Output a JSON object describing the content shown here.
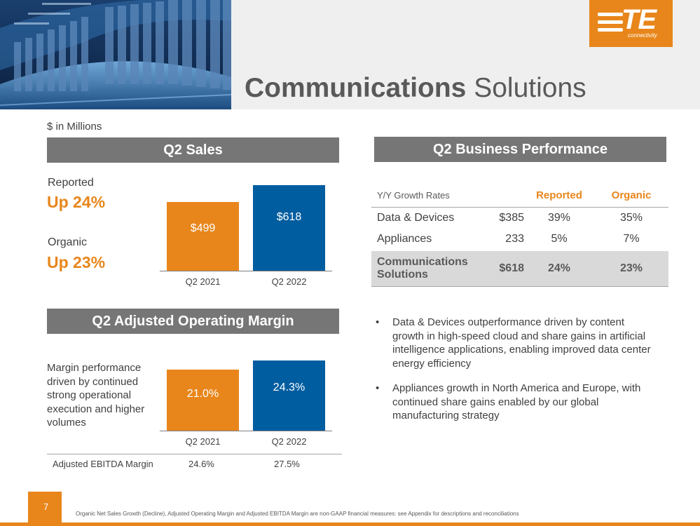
{
  "header": {
    "title_bold": "Communications",
    "title_light": "Solutions",
    "logo_text": "TE",
    "logo_subtext": "connectivity"
  },
  "units_note": "$ in Millions",
  "sales": {
    "heading": "Q2 Sales",
    "reported_label": "Reported",
    "reported_value": "Up 24%",
    "organic_label": "Organic",
    "organic_value": "Up 23%"
  },
  "margin": {
    "heading": "Q2 Adjusted Operating Margin",
    "description": "Margin performance driven by continued strong operational execution and higher volumes",
    "ebitda_label": "Adjusted EBITDA Margin",
    "ebitda_values": [
      "24.6%",
      "27.5%"
    ]
  },
  "performance": {
    "heading": "Q2 Business Performance",
    "col_label": "Y/Y Growth Rates",
    "col_reported": "Reported",
    "col_organic": "Organic",
    "rows": [
      {
        "name": "Data & Devices",
        "sales": "$385",
        "reported": "39%",
        "organic": "35%"
      },
      {
        "name": "Appliances",
        "sales": "233",
        "reported": "5%",
        "organic": "7%"
      }
    ],
    "total": {
      "name": "Communications Solutions",
      "sales": "$618",
      "reported": "24%",
      "organic": "23%"
    }
  },
  "bullets": [
    "Data & Devices outperformance driven by content growth in high-speed cloud and share gains in artificial intelligence applications, enabling improved data center energy efficiency",
    "Appliances growth in North America and Europe, with continued share gains enabled by our global manufacturing strategy"
  ],
  "bullet_marker": "•",
  "footer": {
    "page_number": "7",
    "footnote": "Organic Net Sales Growth (Decline), Adjusted Operating Margin and Adjusted EBITDA Margin are non-GAAP financial measures: see Appendix for descriptions and reconciliations"
  },
  "colors": {
    "accent_orange": "#E8861B",
    "accent_blue": "#005DA0",
    "header_gray": "#767676"
  },
  "chart_data": [
    {
      "type": "bar",
      "categories": [
        "Q2 2021",
        "Q2 2022"
      ],
      "values": [
        499,
        618
      ],
      "data_labels": [
        "$499",
        "$618"
      ],
      "colors": [
        "#E8861B",
        "#005DA0"
      ],
      "ylim": [
        0,
        690
      ]
    },
    {
      "type": "bar",
      "categories": [
        "Q2 2021",
        "Q2 2022"
      ],
      "values": [
        21.0,
        24.3
      ],
      "data_labels": [
        "21.0%",
        "24.3%"
      ],
      "colors": [
        "#E8861B",
        "#005DA0"
      ],
      "ylim": [
        0,
        30
      ]
    }
  ]
}
